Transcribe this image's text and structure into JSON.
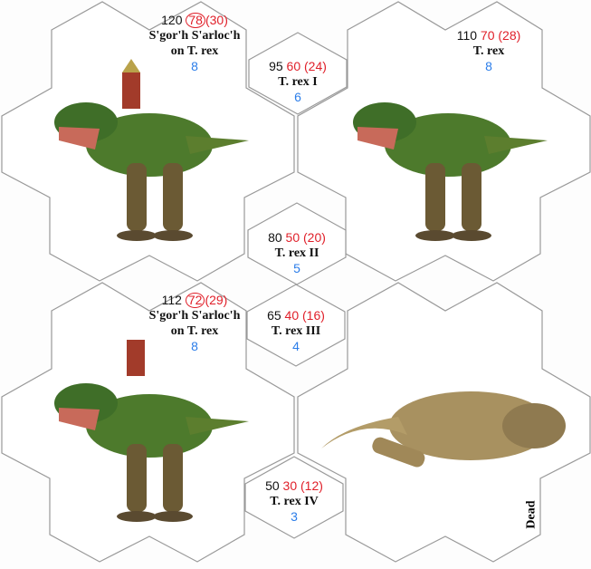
{
  "units": [
    {
      "name_lines": [
        "S'gor'h S'arloc'h",
        "on T. rex"
      ],
      "stat_a": "120",
      "stat_b": "78",
      "stat_c": "(30)",
      "stat_b_circled": true,
      "level": "8"
    },
    {
      "name_lines": [
        "T. rex"
      ],
      "stat_a": "110",
      "stat_b": "70",
      "stat_c": "(28)",
      "stat_b_circled": false,
      "level": "8"
    },
    {
      "name_lines": [
        "S'gor'h S'arloc'h",
        "on T. rex"
      ],
      "stat_a": "112",
      "stat_b": "72",
      "stat_c": "(29)",
      "stat_b_circled": true,
      "level": "8"
    }
  ],
  "small": [
    {
      "name": "T. rex I",
      "stat_a": "95",
      "stat_b": "60",
      "stat_c": "(24)",
      "level": "6"
    },
    {
      "name": "T. rex II",
      "stat_a": "80",
      "stat_b": "50",
      "stat_c": "(20)",
      "level": "5"
    },
    {
      "name": "T. rex III",
      "stat_a": "65",
      "stat_b": "40",
      "stat_c": "(16)",
      "level": "4"
    },
    {
      "name": "T. rex IV",
      "stat_a": "50",
      "stat_b": "30",
      "stat_c": "(12)",
      "level": "3"
    }
  ],
  "dead_label": "Dead",
  "colors": {
    "stat_red": "#e0202a",
    "level_blue": "#2b7de9",
    "tile_border": "#999999"
  }
}
